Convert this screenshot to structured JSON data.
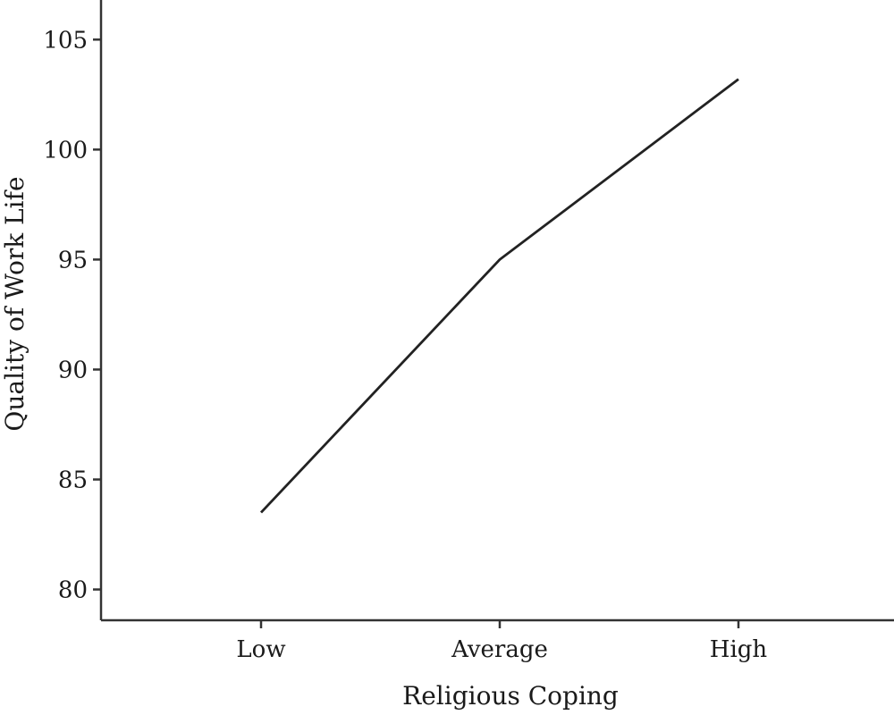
{
  "chart_data": {
    "type": "line",
    "title": "",
    "xlabel": "Religious Coping",
    "ylabel": "Quality of Work Life",
    "categories": [
      "Low",
      "Average",
      "High"
    ],
    "series": [
      {
        "values": [
          83.5,
          95.0,
          103.2
        ]
      }
    ],
    "yticks": [
      "80",
      "85",
      "90",
      "95",
      "100",
      "105"
    ],
    "ylim": [
      78.6,
      106.8
    ],
    "grid": false,
    "legend": "none"
  }
}
